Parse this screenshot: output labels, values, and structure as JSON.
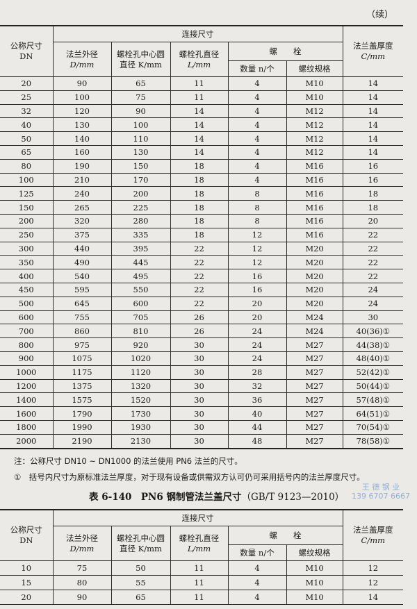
{
  "continued_label": "（续）",
  "headers": {
    "dn": "公称尺寸",
    "dn_unit": "DN",
    "connection": "连接尺寸",
    "flange_od": "法兰外径",
    "flange_od_unit": "D/mm",
    "bolt_circle": "螺栓孔中心圆",
    "bolt_circle_unit": "直径 K/mm",
    "bolt_hole": "螺栓孔直径",
    "bolt_hole_unit": "L/mm",
    "bolt": "螺　　栓",
    "bolt_qty": "数量 n/个",
    "bolt_thread": "螺纹规格",
    "thickness": "法兰盖厚度",
    "thickness_unit": "C/mm"
  },
  "table1_rows": [
    [
      "20",
      "90",
      "65",
      "11",
      "4",
      "M10",
      "14"
    ],
    [
      "25",
      "100",
      "75",
      "11",
      "4",
      "M10",
      "14"
    ],
    [
      "32",
      "120",
      "90",
      "14",
      "4",
      "M12",
      "14"
    ],
    [
      "40",
      "130",
      "100",
      "14",
      "4",
      "M12",
      "14"
    ],
    [
      "50",
      "140",
      "110",
      "14",
      "4",
      "M12",
      "14"
    ],
    [
      "65",
      "160",
      "130",
      "14",
      "4",
      "M12",
      "14"
    ],
    [
      "80",
      "190",
      "150",
      "18",
      "4",
      "M16",
      "16"
    ],
    [
      "100",
      "210",
      "170",
      "18",
      "4",
      "M16",
      "16"
    ],
    [
      "125",
      "240",
      "200",
      "18",
      "8",
      "M16",
      "18"
    ],
    [
      "150",
      "265",
      "225",
      "18",
      "8",
      "M16",
      "18"
    ],
    [
      "200",
      "320",
      "280",
      "18",
      "8",
      "M16",
      "20"
    ],
    [
      "250",
      "375",
      "335",
      "18",
      "12",
      "M16",
      "22"
    ],
    [
      "300",
      "440",
      "395",
      "22",
      "12",
      "M20",
      "22"
    ],
    [
      "350",
      "490",
      "445",
      "22",
      "12",
      "M20",
      "22"
    ],
    [
      "400",
      "540",
      "495",
      "22",
      "16",
      "M20",
      "22"
    ],
    [
      "450",
      "595",
      "550",
      "22",
      "16",
      "M20",
      "24"
    ],
    [
      "500",
      "645",
      "600",
      "22",
      "20",
      "M20",
      "24"
    ],
    [
      "600",
      "755",
      "705",
      "26",
      "20",
      "M24",
      "30"
    ],
    [
      "700",
      "860",
      "810",
      "26",
      "24",
      "M24",
      "40(36)①"
    ],
    [
      "800",
      "975",
      "920",
      "30",
      "24",
      "M27",
      "44(38)①"
    ],
    [
      "900",
      "1075",
      "1020",
      "30",
      "24",
      "M27",
      "48(40)①"
    ],
    [
      "1000",
      "1175",
      "1120",
      "30",
      "28",
      "M27",
      "52(42)①"
    ],
    [
      "1200",
      "1375",
      "1320",
      "30",
      "32",
      "M27",
      "50(44)①"
    ],
    [
      "1400",
      "1575",
      "1520",
      "30",
      "36",
      "M27",
      "57(48)①"
    ],
    [
      "1600",
      "1790",
      "1730",
      "30",
      "40",
      "M27",
      "64(51)①"
    ],
    [
      "1800",
      "1990",
      "1930",
      "30",
      "44",
      "M27",
      "70(54)①"
    ],
    [
      "2000",
      "2190",
      "2130",
      "30",
      "48",
      "M27",
      "78(58)①"
    ]
  ],
  "notes": {
    "note1": "注：公称尺寸 DN10 ~ DN1000 的法兰使用 PN6 法兰的尺寸。",
    "note2": "①　括号内尺寸为原标准法兰厚度，对于现有设备或供需双方认可仍可采用括号内的法兰厚度尺寸。"
  },
  "table2_title": {
    "number": "表 6-140　PN6 钢制管法兰盖尺寸",
    "standard": "（GB/T 9123—2010）"
  },
  "stamp": {
    "line1": "王 德 钢 业",
    "line2": "139 6707 6667"
  },
  "table2_rows": [
    [
      "10",
      "75",
      "50",
      "11",
      "4",
      "M10",
      "12"
    ],
    [
      "15",
      "80",
      "55",
      "11",
      "4",
      "M10",
      "12"
    ],
    [
      "20",
      "90",
      "65",
      "11",
      "4",
      "M10",
      "14"
    ]
  ]
}
